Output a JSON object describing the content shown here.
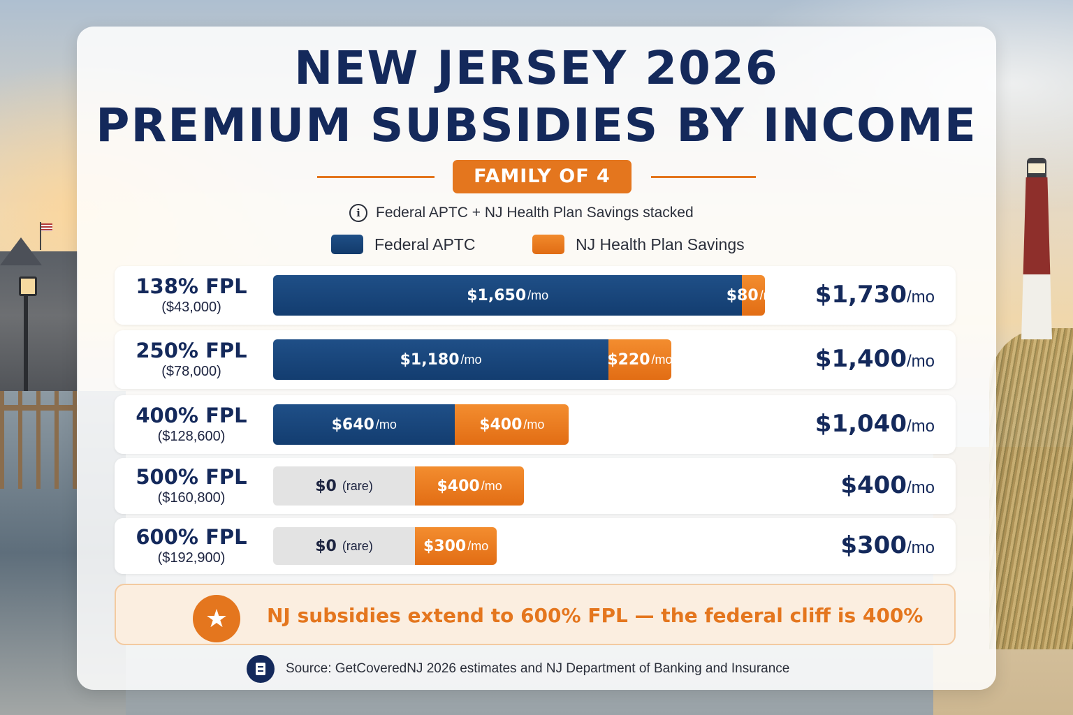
{
  "title_line1": "NEW JERSEY 2026",
  "title_line2": "PREMIUM SUBSIDIES BY INCOME",
  "family_badge": "FAMILY OF 4",
  "note": "Federal APTC + NJ Health Plan Savings stacked",
  "legend": {
    "federal": "Federal APTC",
    "nj": "NJ Health Plan Savings"
  },
  "colors": {
    "federal": "#1a4a80",
    "nj": "#e4761e",
    "zero": "#e3e3e3",
    "title": "#14295b"
  },
  "unit_label": "/mo",
  "zero_label": "$0",
  "rare_label": "(rare)",
  "chart_data": {
    "type": "bar",
    "stacked": true,
    "orientation": "horizontal",
    "title": "NEW JERSEY 2026 PREMIUM SUBSIDIES BY INCOME",
    "subtitle": "FAMILY OF 4",
    "scale_max": 1730,
    "categories": [
      "138% FPL",
      "250% FPL",
      "400% FPL",
      "500% FPL",
      "600% FPL"
    ],
    "incomes": [
      "($43,000)",
      "($78,000)",
      "($128,600)",
      "($160,800)",
      "($192,900)"
    ],
    "series": [
      {
        "name": "Federal APTC",
        "values": [
          1650,
          1180,
          640,
          0,
          0
        ],
        "labels": [
          "$1,650",
          "$1,180",
          "$640",
          "$0",
          "$0"
        ]
      },
      {
        "name": "NJ Health Plan Savings",
        "values": [
          80,
          220,
          400,
          400,
          300
        ],
        "labels": [
          "$80",
          "$220",
          "$400",
          "$400",
          "$300"
        ]
      }
    ],
    "totals": [
      "$1,730",
      "$1,400",
      "$1,040",
      "$400",
      "$300"
    ],
    "legend_position": "top"
  },
  "callout": "NJ subsidies extend to 600% FPL — the federal cliff is 400%",
  "source": "Source: GetCoveredNJ 2026 estimates and NJ Department of Banking and Insurance"
}
